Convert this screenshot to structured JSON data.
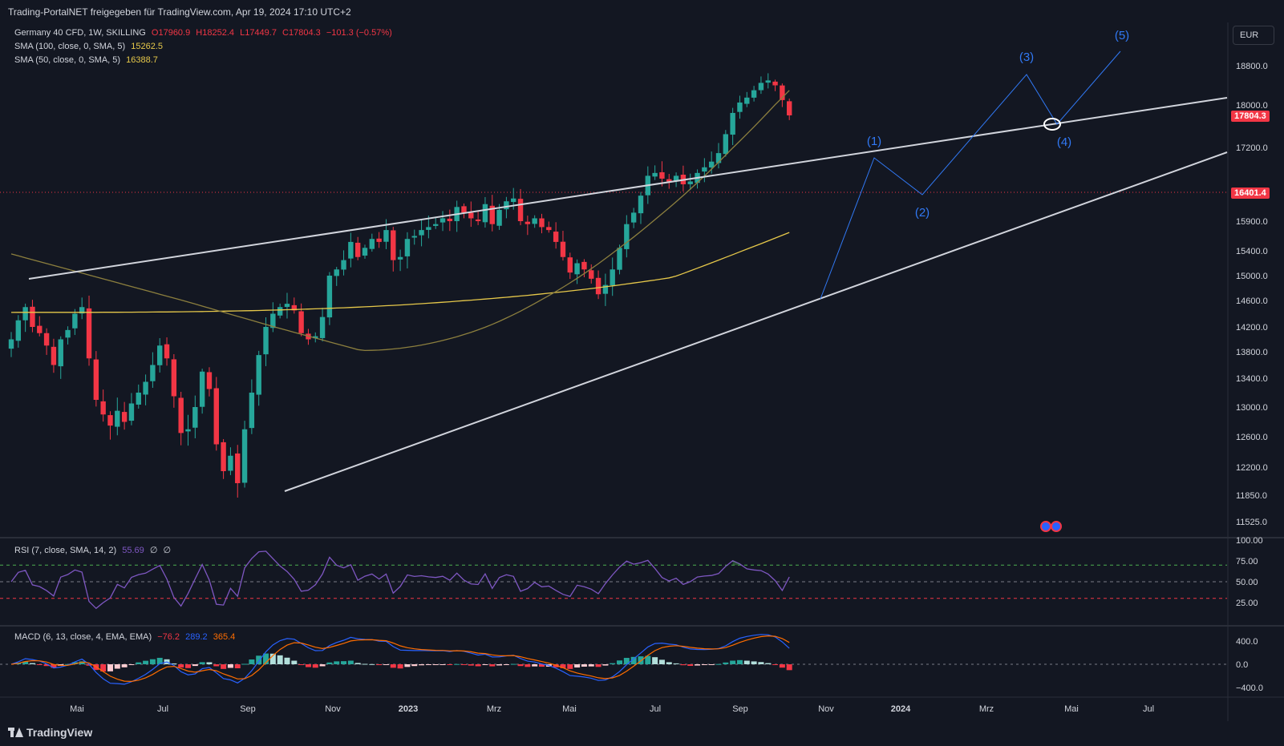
{
  "header": {
    "publish_text": "Trading-PortalNET freigegeben für TradingView.com, Apr 19, 2024 17:10 UTC+2"
  },
  "currency": "EUR",
  "legend": {
    "symbol": "Germany 40 CFD, 1W, SKILLING",
    "open": "O17960.9",
    "high": "H18252.4",
    "low": "L17449.7",
    "close": "C17804.3",
    "change": "−101.3 (−0.57%)",
    "sma100_label": "SMA (100, close, 0, SMA, 5)",
    "sma100_value": "15262.5",
    "sma50_label": "SMA (50, close, 0, SMA, 5)",
    "sma50_value": "16388.7"
  },
  "rsi_legend": {
    "label": "RSI (7, close, SMA, 14, 2)",
    "value": "55.69",
    "extra1": "∅",
    "extra2": "∅"
  },
  "macd_legend": {
    "label": "MACD (6, 13, close, 4, EMA, EMA)",
    "hist": "−76.2",
    "macd": "289.2",
    "signal": "365.4"
  },
  "price_tags": {
    "last": "17804.3",
    "level": "16401.4"
  },
  "footer": {
    "brand": "TradingView"
  },
  "colors": {
    "background": "#131722",
    "up": "#26a69a",
    "down": "#f23645",
    "sma100": "#e6c84a",
    "sma50": "#8c7f3e",
    "wave": "#3179f5",
    "rsi": "#7e57c2",
    "macd": "#2962ff",
    "signal": "#ff6d00",
    "trendline": "#d1d4dc"
  },
  "chart_data": {
    "type": "candlestick",
    "timeframe": "1W",
    "x_ticks": [
      "Mai",
      "Jul",
      "Sep",
      "Nov",
      "2023",
      "Mrz",
      "Mai",
      "Jul",
      "Sep",
      "Nov",
      "2024",
      "Mrz",
      "Mai",
      "Jul"
    ],
    "y_ticks": [
      "18800.0",
      "18000.0",
      "17200.0",
      "15900.0",
      "15400.0",
      "15000.0",
      "14600.0",
      "14200.0",
      "13800.0",
      "13400.0",
      "13000.0",
      "12600.0",
      "12200.0",
      "11850.0",
      "11525.0"
    ],
    "ylim": [
      11300,
      19600
    ],
    "series_close": [
      14000,
      14300,
      14500,
      14200,
      14100,
      13900,
      13600,
      14000,
      14150,
      14400,
      14500,
      13700,
      13100,
      12900,
      12750,
      12950,
      12800,
      13050,
      13200,
      13350,
      13600,
      13900,
      13700,
      13150,
      12650,
      12700,
      13000,
      13500,
      13250,
      12500,
      12150,
      12350,
      12000,
      12700,
      13200,
      13750,
      14200,
      14400,
      14500,
      14550,
      14450,
      14100,
      14000,
      14050,
      14350,
      15000,
      15100,
      15250,
      15550,
      15300,
      15450,
      15600,
      15550,
      15750,
      15250,
      15300,
      15600,
      15650,
      15750,
      15800,
      15850,
      15950,
      15900,
      16150,
      16050,
      15950,
      15900,
      16200,
      15850,
      16100,
      16250,
      16300,
      15900,
      15850,
      15950,
      15800,
      15750,
      15550,
      15300,
      15050,
      15200,
      15100,
      14950,
      14700,
      14850,
      15100,
      15450,
      15850,
      16050,
      16350,
      16700,
      16750,
      16650,
      16600,
      16700,
      16550,
      16600,
      16750,
      16850,
      16950,
      17100,
      17450,
      17850,
      18050,
      18150,
      18300,
      18450,
      18500,
      18400,
      18100,
      17804
    ],
    "rsi_ticks": [
      "100.00",
      "75.00",
      "50.00",
      "25.00"
    ],
    "rsi_levels": {
      "upper": 70,
      "middle": 50,
      "lower": 30
    },
    "rsi_last": 55.69,
    "macd_ticks": [
      "400.0",
      "0.0",
      "−400.0"
    ],
    "macd_last": {
      "hist": -76.2,
      "macd": 289.2,
      "signal": 365.4
    },
    "wave_labels": [
      "(1)",
      "(2)",
      "(3)",
      "(4)",
      "(5)"
    ]
  }
}
